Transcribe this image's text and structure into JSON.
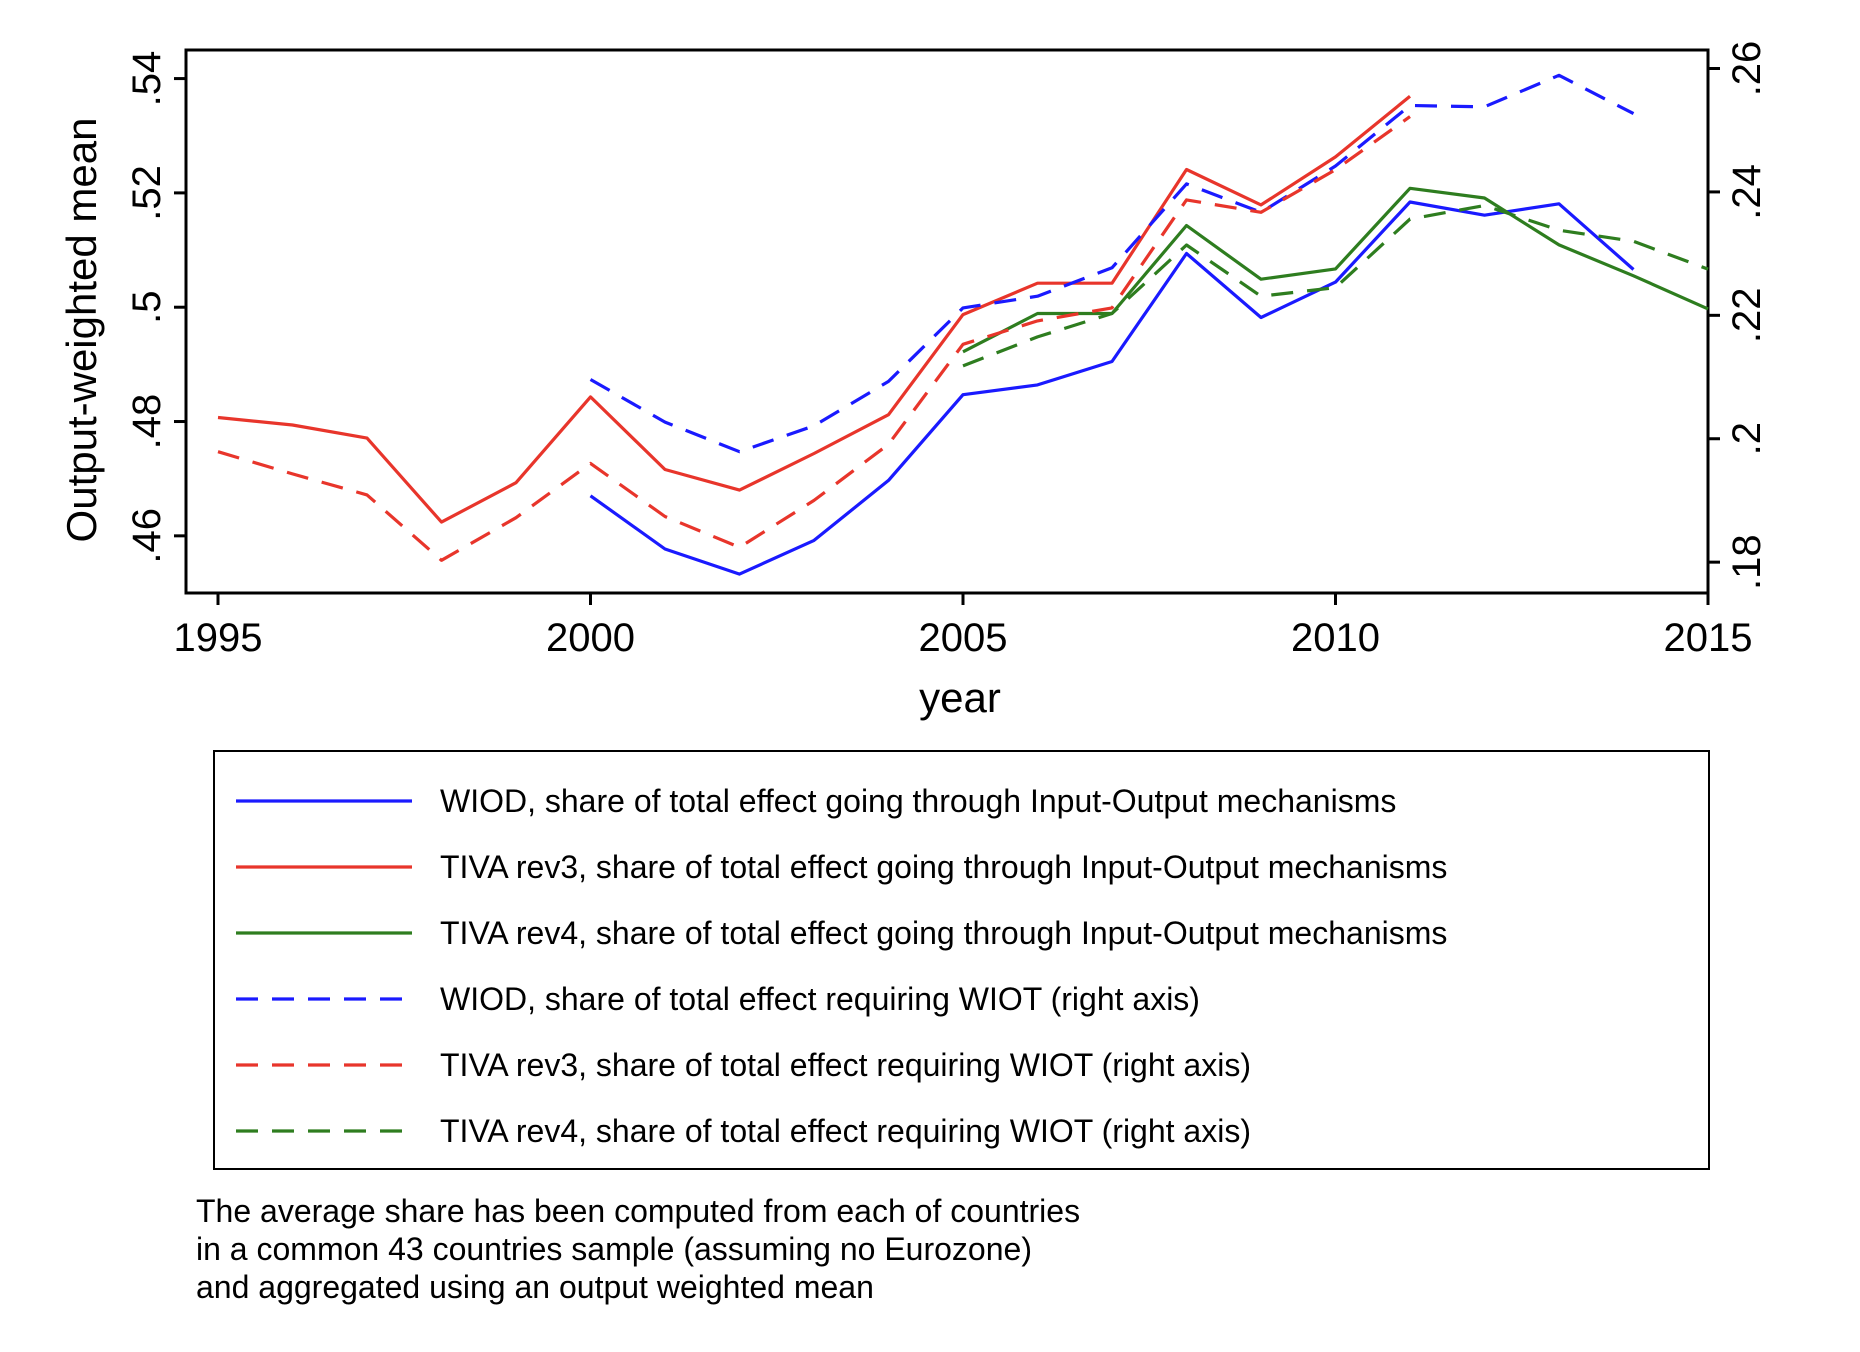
{
  "chart_data": {
    "type": "line",
    "xlabel": "year",
    "ylabel_left": "Output-weighted mean",
    "x_ticks": [
      1995,
      2000,
      2005,
      2010,
      2015
    ],
    "x_tick_labels": [
      "1995",
      "2000",
      "2005",
      "2010",
      "2015"
    ],
    "xlim": [
      1995,
      2015
    ],
    "ylim_left": [
      0.45,
      0.545
    ],
    "y_ticks_left": [
      0.46,
      0.48,
      0.5,
      0.52,
      0.54
    ],
    "y_tick_labels_left": [
      ".46",
      ".48",
      ".5",
      ".52",
      ".54"
    ],
    "ylim_right": [
      0.175,
      0.263
    ],
    "y_ticks_right": [
      0.18,
      0.2,
      0.22,
      0.24,
      0.26
    ],
    "y_tick_labels_right": [
      ".18",
      ".2",
      ".22",
      ".24",
      ".26"
    ],
    "grid": false,
    "legend_position": "below",
    "series": [
      {
        "name": "WIOD, share of total effect going through Input-Output mechanisms",
        "axis": "left",
        "color": "#1a1aff",
        "dash": "solid",
        "x": [
          2000,
          2001,
          2002,
          2003,
          2004,
          2005,
          2006,
          2007,
          2008,
          2009,
          2010,
          2011,
          2012,
          2013,
          2014
        ],
        "values": [
          0.467,
          0.4577,
          0.4533,
          0.4592,
          0.4697,
          0.4847,
          0.4864,
          0.4905,
          0.5094,
          0.4982,
          0.5044,
          0.5184,
          0.5161,
          0.5181,
          0.5066
        ]
      },
      {
        "name": "TIVA rev3, share of total effect going through Input-Output mechanisms",
        "axis": "left",
        "color": "#e8352b",
        "dash": "solid",
        "x": [
          1995,
          1996,
          1997,
          1998,
          1999,
          2000,
          2001,
          2002,
          2003,
          2004,
          2005,
          2006,
          2007,
          2008,
          2009,
          2010,
          2011
        ],
        "values": [
          0.4807,
          0.4794,
          0.4771,
          0.4624,
          0.4693,
          0.4843,
          0.4716,
          0.468,
          0.4744,
          0.4812,
          0.4987,
          0.5042,
          0.5042,
          0.5241,
          0.5179,
          0.5263,
          0.5369
        ]
      },
      {
        "name": "TIVA rev4, share of total effect going through Input-Output mechanisms",
        "axis": "left",
        "color": "#2e7d1f",
        "dash": "solid",
        "x": [
          2005,
          2006,
          2007,
          2008,
          2009,
          2010,
          2011,
          2012,
          2013,
          2014,
          2015
        ],
        "values": [
          0.4922,
          0.4989,
          0.4989,
          0.5143,
          0.5049,
          0.5067,
          0.5208,
          0.5191,
          0.5109,
          0.5055,
          0.4997
        ]
      },
      {
        "name": "WIOD, share of total effect requiring WIOT (right axis)",
        "axis": "right",
        "color": "#1a1aff",
        "dash": "dashed",
        "x": [
          2000,
          2001,
          2002,
          2003,
          2004,
          2005,
          2006,
          2007,
          2008,
          2009,
          2010,
          2011,
          2012,
          2013,
          2014
        ],
        "values": [
          0.2096,
          0.2027,
          0.1979,
          0.2021,
          0.2093,
          0.2212,
          0.2231,
          0.2277,
          0.2413,
          0.2367,
          0.2442,
          0.254,
          0.2538,
          0.2589,
          0.2527
        ]
      },
      {
        "name": "TIVA rev3, share of total effect requiring WIOT (right axis)",
        "axis": "right",
        "color": "#e8352b",
        "dash": "dashed",
        "x": [
          1995,
          1996,
          1997,
          1998,
          1999,
          2000,
          2001,
          2002,
          2003,
          2004,
          2005,
          2006,
          2007,
          2008,
          2009,
          2010,
          2011
        ],
        "values": [
          0.1979,
          0.1943,
          0.1909,
          0.1803,
          0.1872,
          0.196,
          0.1874,
          0.1824,
          0.19,
          0.1991,
          0.2153,
          0.2191,
          0.2212,
          0.2387,
          0.2367,
          0.2436,
          0.2522
        ]
      },
      {
        "name": "TIVA rev4, share of total effect requiring WIOT (right axis)",
        "axis": "right",
        "color": "#2e7d1f",
        "dash": "dashed",
        "x": [
          2005,
          2006,
          2007,
          2008,
          2009,
          2010,
          2011,
          2012,
          2013,
          2014,
          2015
        ],
        "values": [
          0.2118,
          0.2165,
          0.2203,
          0.2314,
          0.2231,
          0.2245,
          0.2356,
          0.2378,
          0.2338,
          0.232,
          0.2275
        ]
      }
    ]
  },
  "note": {
    "lines": [
      "The average share has been computed from each of countries",
      "in a common 43 countries sample (assuming no Eurozone)",
      "and aggregated using an output weighted mean"
    ]
  }
}
